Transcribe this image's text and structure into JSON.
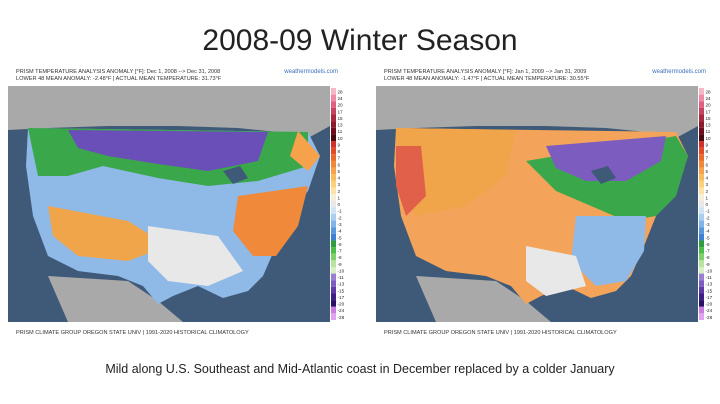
{
  "title": "2008-09 Winter Season",
  "caption": "Mild along U.S. Southeast and Mid-Atlantic coast in December replaced by a colder January",
  "panels": [
    {
      "header_line1": "PRISM TEMPERATURE ANALYSIS ANOMALY [°F]: Dec 1, 2008 --> Dec 31, 2008",
      "header_line2": "LOWER 48 MEAN ANOMALY: -2.48°F | ACTUAL MEAN TEMPERATURE: 31.73°F",
      "brand": "weathermodels.com",
      "footer": "PRISM CLIMATE GROUP OREGON STATE UNIV | 1991-2020 HISTORICAL CLIMATOLOGY"
    },
    {
      "header_line1": "PRISM TEMPERATURE ANALYSIS ANOMALY [°F]: Jan 1, 2009 --> Jan 31, 2009",
      "header_line2": "LOWER 48 MEAN ANOMALY: -1.47°F | ACTUAL MEAN TEMPERATURE: 30.55°F",
      "brand": "weathermodels.com",
      "footer": "PRISM CLIMATE GROUP OREGON STATE UNIV | 1991-2020 HISTORICAL CLIMATOLOGY"
    }
  ],
  "legend": {
    "labels": [
      "28",
      "24",
      "20",
      "17",
      "15",
      "13",
      "11",
      "10",
      "9",
      "8",
      "7",
      "6",
      "5",
      "4",
      "3",
      "2",
      "1",
      "0",
      "-1",
      "-2",
      "-3",
      "-4",
      "-5",
      "-6",
      "-7",
      "-8",
      "-9",
      "-10",
      "-11",
      "-13",
      "-15",
      "-17",
      "-20",
      "-24",
      "-28"
    ],
    "colors": [
      "#f7b7c7",
      "#f08aa6",
      "#e0607f",
      "#c8435e",
      "#a82a3f",
      "#8a1a2c",
      "#6e0f1e",
      "#4a0a12",
      "#d0302a",
      "#e24a2a",
      "#ea6a2e",
      "#f08a3a",
      "#f5a24a",
      "#f8ba5e",
      "#fad27e",
      "#fbe3a6",
      "#f6efd8",
      "#e8e8e8",
      "#cfe3f3",
      "#a8cfee",
      "#7fb4e6",
      "#5a98dd",
      "#3d7fd2",
      "#2e9e3e",
      "#4cbb4a",
      "#7fcf6a",
      "#b9e3a0",
      "#d8eec8",
      "#9a7fd0",
      "#7d5cc0",
      "#5e3aa8",
      "#3e1f86",
      "#2a0f66",
      "#c77de0",
      "#e0a3f0"
    ]
  }
}
